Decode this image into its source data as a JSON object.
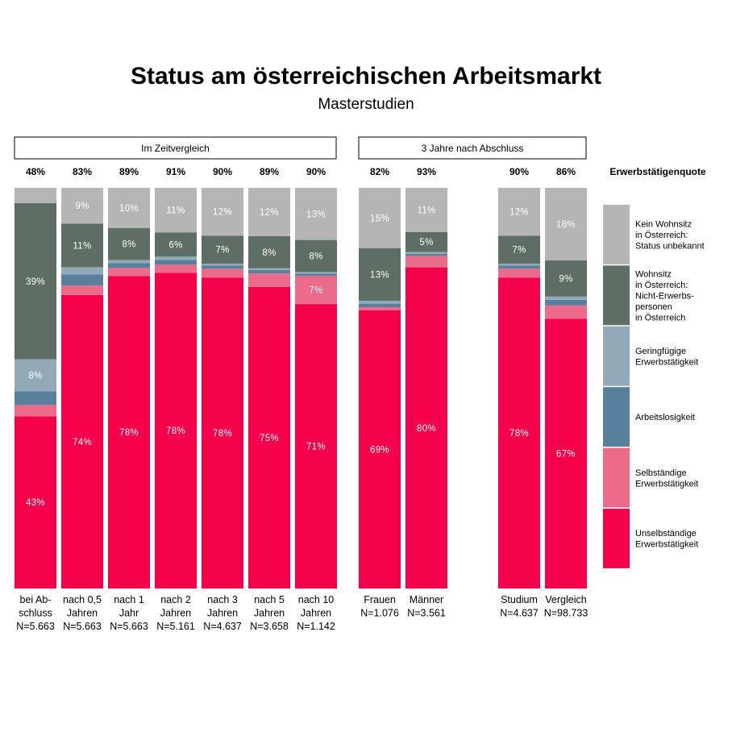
{
  "title": "Status am österreichischen Arbeitsmarkt",
  "subtitle": "Masterstudien",
  "group_headers": [
    "Im Zeitvergleich",
    "3 Jahre nach Abschluss"
  ],
  "quote_label": "Erwerbstätigenquote",
  "colors": {
    "unselbst": "#f5004a",
    "selbst": "#ec6b8b",
    "arbeitslos": "#58809c",
    "gering": "#92aab8",
    "nichterw": "#5e6e64",
    "unbekannt": "#b5b5b5"
  },
  "chart_data": {
    "type": "bar",
    "stacked": true,
    "percent_scale": [
      0,
      100
    ],
    "title": "Status am österreichischen Arbeitsmarkt",
    "subtitle": "Masterstudien",
    "legend_position": "right",
    "legend": [
      {
        "key": "unbekannt",
        "label": [
          "Kein Wohnsitz",
          "in Österreich:",
          "Status unbekannt"
        ]
      },
      {
        "key": "nichterw",
        "label": [
          "Wohnsitz",
          "in Österreich:",
          "Nicht-Erwerbs-",
          "personen",
          "in Österreich"
        ]
      },
      {
        "key": "gering",
        "label": [
          "Geringfügige",
          "Erwerbstätigkeit"
        ]
      },
      {
        "key": "arbeitslos",
        "label": [
          "Arbeitslosigkeit"
        ]
      },
      {
        "key": "selbst",
        "label": [
          "Selbständige",
          "Erwerbstätigkeit"
        ]
      },
      {
        "key": "unselbst",
        "label": [
          "Unselbständige",
          "Erwerbstätigkeit"
        ]
      }
    ],
    "series_order": [
      "unselbst",
      "selbst",
      "arbeitslos",
      "gering",
      "nichterw",
      "unbekannt"
    ],
    "bars": [
      {
        "group": 0,
        "category": [
          "bei Ab-",
          "schluss"
        ],
        "n": "N=5.663",
        "quote": "48%",
        "values": {
          "unselbst": 43,
          "selbst": 2.8,
          "arbeitslos": 3.4,
          "gering": 8,
          "nichterw": 39,
          "unbekannt": 3.8
        },
        "labels": {
          "unselbst": "43%",
          "gering": "8%",
          "nichterw": "39%"
        }
      },
      {
        "group": 0,
        "category": [
          "nach 0,5",
          "Jahren"
        ],
        "n": "N=5.663",
        "quote": "83%",
        "values": {
          "unselbst": 74,
          "selbst": 2.4,
          "arbeitslos": 2.8,
          "gering": 1.8,
          "nichterw": 11,
          "unbekannt": 9
        },
        "labels": {
          "unselbst": "74%",
          "nichterw": "11%",
          "unbekannt": "9%"
        }
      },
      {
        "group": 0,
        "category": [
          "nach 1",
          "Jahr"
        ],
        "n": "N=5.663",
        "quote": "89%",
        "values": {
          "unselbst": 78,
          "selbst": 2,
          "arbeitslos": 1.2,
          "gering": 0.8,
          "nichterw": 8,
          "unbekannt": 10
        },
        "labels": {
          "unselbst": "78%",
          "nichterw": "8%",
          "unbekannt": "10%"
        }
      },
      {
        "group": 0,
        "category": [
          "nach 2",
          "Jahren"
        ],
        "n": "N=5.161",
        "quote": "91%",
        "values": {
          "unselbst": 78,
          "selbst": 2,
          "arbeitslos": 1.2,
          "gering": 0.8,
          "nichterw": 6,
          "unbekannt": 11
        },
        "labels": {
          "unselbst": "78%",
          "nichterw": "6%",
          "unbekannt": "11%"
        }
      },
      {
        "group": 0,
        "category": [
          "nach 3",
          "Jahren"
        ],
        "n": "N=4.637",
        "quote": "90%",
        "values": {
          "unselbst": 78,
          "selbst": 2.2,
          "arbeitslos": 0.8,
          "gering": 0.5,
          "nichterw": 7,
          "unbekannt": 12
        },
        "labels": {
          "unselbst": "78%",
          "nichterw": "7%",
          "unbekannt": "12%"
        }
      },
      {
        "group": 0,
        "category": [
          "nach 5",
          "Jahren"
        ],
        "n": "N=3.658",
        "quote": "89%",
        "values": {
          "unselbst": 75,
          "selbst": 3.3,
          "arbeitslos": 0.9,
          "gering": 0.4,
          "nichterw": 8,
          "unbekannt": 12
        },
        "labels": {
          "unselbst": "75%",
          "nichterw": "8%",
          "unbekannt": "12%"
        }
      },
      {
        "group": 0,
        "category": [
          "nach 10",
          "Jahren"
        ],
        "n": "N=1.142",
        "quote": "90%",
        "values": {
          "unselbst": 71,
          "selbst": 7,
          "arbeitslos": 0.6,
          "gering": 0.4,
          "nichterw": 8,
          "unbekannt": 13
        },
        "labels": {
          "unselbst": "71%",
          "selbst": "7%",
          "nichterw": "8%",
          "unbekannt": "13%"
        }
      },
      {
        "group": 1,
        "category": [
          "Frauen"
        ],
        "n": "N=1.076",
        "quote": "82%",
        "values": {
          "unselbst": 69,
          "selbst": 0.8,
          "arbeitslos": 0.8,
          "gering": 0.8,
          "nichterw": 13,
          "unbekannt": 15
        },
        "labels": {
          "unselbst": "69%",
          "nichterw": "13%",
          "unbekannt": "15%"
        }
      },
      {
        "group": 1,
        "category": [
          "Männer"
        ],
        "n": "N=3.561",
        "quote": "93%",
        "values": {
          "unselbst": 80,
          "selbst": 2.8,
          "arbeitslos": 0.6,
          "gering": 0.4,
          "nichterw": 5,
          "unbekannt": 11
        },
        "labels": {
          "unselbst": "80%",
          "nichterw": "5%",
          "unbekannt": "11%"
        }
      },
      {
        "group": 2,
        "category": [
          "Studium"
        ],
        "n": "N=4.637",
        "quote": "90%",
        "values": {
          "unselbst": 78,
          "selbst": 2.2,
          "arbeitslos": 0.8,
          "gering": 0.5,
          "nichterw": 7,
          "unbekannt": 12
        },
        "labels": {
          "unselbst": "78%",
          "nichterw": "7%",
          "unbekannt": "12%"
        }
      },
      {
        "group": 2,
        "category": [
          "Vergleich"
        ],
        "n": "N=98.733",
        "quote": "86%",
        "values": {
          "unselbst": 67,
          "selbst": 3.3,
          "arbeitslos": 1.4,
          "gering": 0.8,
          "nichterw": 9,
          "unbekannt": 18
        },
        "labels": {
          "unselbst": "67%",
          "nichterw": "9%",
          "unbekannt": "18%"
        }
      }
    ]
  }
}
